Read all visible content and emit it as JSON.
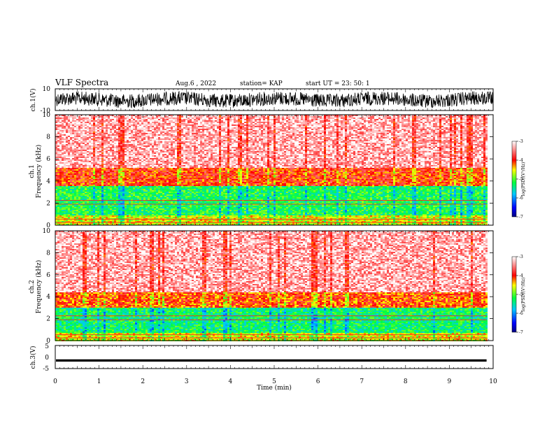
{
  "header": {
    "title": "VLF Spectra",
    "date": "Aug.6 , 2022",
    "station": "station= KAP",
    "start": "start UT = 23: 50: 1"
  },
  "chart_data": [
    {
      "type": "line",
      "name": "ch1-waveform",
      "ylabel": "ch.1(V)",
      "ylim": [
        -10,
        10
      ],
      "ytick_labels": [
        "10",
        "-10"
      ],
      "xlim": [
        0,
        10
      ],
      "color": "#000000"
    },
    {
      "type": "heatmap",
      "name": "ch1-spectrogram",
      "ylabel": "ch.1\nFrequency (kHz)",
      "ylim": [
        0,
        10
      ],
      "yticks": [
        0,
        2,
        4,
        6,
        8,
        10
      ],
      "xlim": [
        0,
        9.85
      ],
      "colorbar": {
        "label": "log(PSD)(V²/Hz)",
        "range": [
          -7,
          -3
        ],
        "ticks": [
          -3,
          -4,
          -5,
          -6,
          -7
        ]
      },
      "bands_khz": [
        {
          "range": [
            0,
            1.0
          ],
          "level": -4.6
        },
        {
          "range": [
            1.0,
            3.6
          ],
          "level": -5.2
        },
        {
          "range": [
            3.6,
            5.2
          ],
          "level": -4.0
        },
        {
          "range": [
            5.2,
            10
          ],
          "level": -3.3
        }
      ]
    },
    {
      "type": "heatmap",
      "name": "ch2-spectrogram",
      "ylabel": "ch.2\nFrequency (kHz)",
      "ylim": [
        0,
        10
      ],
      "yticks": [
        0,
        2,
        4,
        6,
        8,
        10
      ],
      "xlim": [
        0,
        9.85
      ],
      "colorbar": {
        "label": "log(PSD)(V²/Hz)",
        "range": [
          -7,
          -3
        ],
        "ticks": [
          -3,
          -4,
          -5,
          -6,
          -7
        ]
      },
      "bands_khz": [
        {
          "range": [
            0,
            0.8
          ],
          "level": -4.6
        },
        {
          "range": [
            0.8,
            3.0
          ],
          "level": -5.3
        },
        {
          "range": [
            3.0,
            4.5
          ],
          "level": -4.1
        },
        {
          "range": [
            4.5,
            10
          ],
          "level": -3.3
        }
      ]
    },
    {
      "type": "line",
      "name": "ch3-waveform",
      "ylabel": "ch.3(V)",
      "ylim": [
        -5,
        5
      ],
      "ytick_labels": [
        "5",
        "0",
        "-5"
      ],
      "level_v": [
        -1.0,
        -2.0
      ],
      "xlim": [
        0,
        9.85
      ],
      "color": "#000000"
    }
  ],
  "xaxis": {
    "label": "Time (min)",
    "ticks": [
      "0",
      "1",
      "2",
      "3",
      "4",
      "5",
      "6",
      "7",
      "8",
      "9",
      "10"
    ],
    "range": [
      0,
      10
    ]
  }
}
